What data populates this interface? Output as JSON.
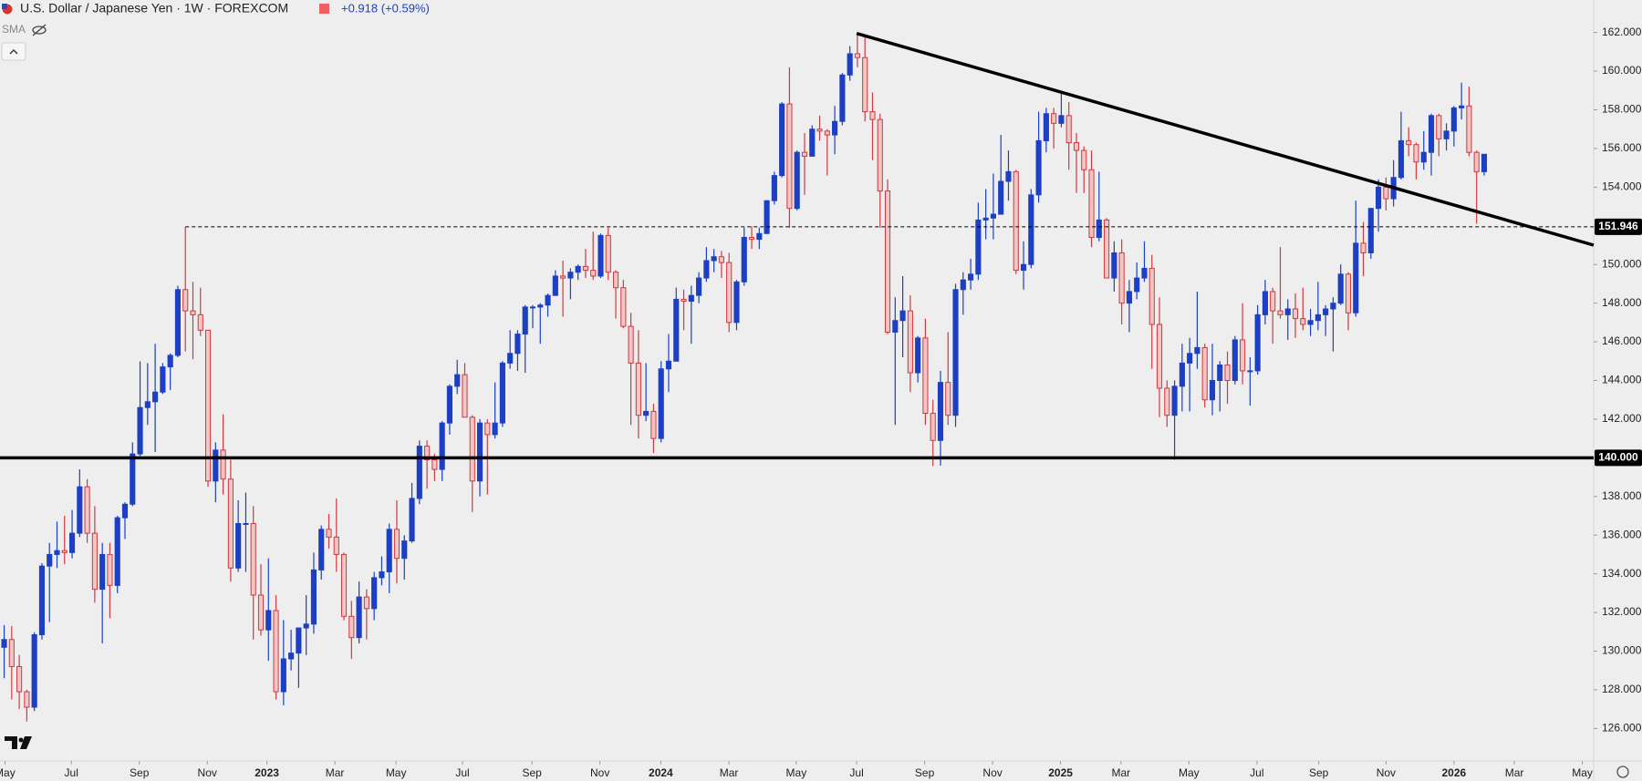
{
  "chart_data": {
    "type": "candlestick",
    "title": "U.S. Dollar / Japanese Yen · 1W · FOREXCOM",
    "change": "+0.918 (+0.59%)",
    "indicator": "SMA",
    "up_color": "#1c3fc4",
    "down_color": "#d0393f",
    "down_fill": "#f3c6c6",
    "xlim": [
      -0.55,
      210.5
    ],
    "ylim": [
      124.32,
      163.68
    ],
    "xticks": [
      {
        "value": 0.1,
        "label": "May"
      },
      {
        "value": 8.9,
        "label": "Jul"
      },
      {
        "value": 17.9,
        "label": "Sep"
      },
      {
        "value": 26.9,
        "label": "Nov"
      },
      {
        "value": 34.8,
        "label": "2023"
      },
      {
        "value": 43.8,
        "label": "Mar"
      },
      {
        "value": 51.9,
        "label": "May"
      },
      {
        "value": 60.7,
        "label": "Jul"
      },
      {
        "value": 69.9,
        "label": "Sep"
      },
      {
        "value": 78.9,
        "label": "Nov"
      },
      {
        "value": 86.96,
        "label": "2024"
      },
      {
        "value": 95.98,
        "label": "Mar"
      },
      {
        "value": 104.9,
        "label": "May"
      },
      {
        "value": 112.9,
        "label": "Jul"
      },
      {
        "value": 121.9,
        "label": "Sep"
      },
      {
        "value": 130.9,
        "label": "Nov"
      },
      {
        "value": 139.9,
        "label": "2025"
      },
      {
        "value": 147.9,
        "label": "Mar"
      },
      {
        "value": 156.9,
        "label": "May"
      },
      {
        "value": 165.9,
        "label": "Jul"
      },
      {
        "value": 174.1,
        "label": "Sep"
      },
      {
        "value": 183,
        "label": "Nov"
      },
      {
        "value": 192,
        "label": "2026"
      },
      {
        "value": 200,
        "label": "Mar"
      },
      {
        "value": 209,
        "label": "May"
      }
    ],
    "yticks": [
      {
        "value": 126,
        "label": "126.000"
      },
      {
        "value": 128,
        "label": "128.000"
      },
      {
        "value": 130,
        "label": "130.000"
      },
      {
        "value": 132,
        "label": "132.000"
      },
      {
        "value": 134,
        "label": "134.000"
      },
      {
        "value": 136,
        "label": "136.000"
      },
      {
        "value": 138,
        "label": "138.000"
      },
      {
        "value": 142,
        "label": "142.000"
      },
      {
        "value": 144,
        "label": "144.000"
      },
      {
        "value": 146,
        "label": "146.000"
      },
      {
        "value": 148,
        "label": "148.000"
      },
      {
        "value": 150,
        "label": "150.000"
      },
      {
        "value": 154,
        "label": "154.000"
      },
      {
        "value": 156,
        "label": "156.000"
      },
      {
        "value": 158,
        "label": "158.000"
      },
      {
        "value": 160,
        "label": "160.000"
      },
      {
        "value": 162,
        "label": "162.000"
      }
    ],
    "hlines": [
      {
        "value": 140,
        "label": "140.000",
        "style": "solid"
      },
      {
        "value": 151.946,
        "label": "151.946",
        "style": "dashed",
        "x_start": 24
      }
    ],
    "trendline": {
      "x": [
        112.9,
        210.5
      ],
      "y": [
        161.95,
        151.0
      ]
    },
    "open": [
      130.2,
      130.6,
      129.2,
      127.9,
      127.1,
      130.85,
      134.4,
      135.0,
      135.2,
      135.1,
      136.1,
      138.5,
      136.1,
      133.2,
      135.0,
      133.4,
      136.9,
      137.6,
      140.2,
      142.6,
      142.9,
      143.4,
      144.7,
      145.3,
      148.7,
      147.6,
      147.4,
      146.6,
      138.8,
      140.4,
      138.9,
      134.3,
      136.6,
      136.6,
      132.9,
      131.1,
      132.1,
      127.9,
      129.6,
      129.9,
      131.2,
      131.4,
      134.2,
      136.3,
      135.9,
      135.0,
      131.8,
      130.7,
      132.8,
      132.2,
      133.8,
      134.1,
      136.3,
      134.8,
      135.7,
      137.9,
      140.6,
      139.9,
      139.4,
      141.8,
      143.7,
      144.3,
      142.1,
      138.8,
      141.8,
      141.2,
      141.8,
      144.9,
      145.4,
      146.4,
      147.8,
      147.8,
      147.9,
      148.4,
      149.4,
      149.3,
      149.6,
      149.9,
      149.7,
      149.4,
      151.5,
      149.6,
      148.8,
      146.8,
      144.9,
      142.2,
      142.4,
      141.0,
      144.6,
      145.0,
      148.2,
      148.1,
      148.4,
      149.3,
      150.2,
      150.4,
      150.1,
      147.0,
      149.1,
      151.4,
      151.3,
      151.6,
      153.3,
      154.6,
      158.3,
      152.9,
      155.8,
      155.6,
      157.0,
      156.9,
      156.7,
      157.4,
      159.8,
      160.9,
      160.7,
      157.9,
      157.5,
      153.8,
      146.5,
      147.1,
      147.6,
      144.4,
      146.2,
      142.3,
      140.9,
      143.9,
      142.2,
      148.7,
      149.2,
      149.5,
      152.3,
      152.4,
      152.6,
      154.3,
      154.8,
      149.7,
      150.0,
      153.6,
      156.4,
      157.8,
      157.3,
      157.7,
      156.3,
      155.9,
      154.9,
      151.4,
      152.3,
      149.3,
      150.6,
      148.0,
      148.6,
      149.3,
      149.8,
      146.9,
      143.6,
      142.2,
      143.7,
      144.9,
      145.4,
      145.7,
      143.0,
      144.0,
      144.8,
      144.0,
      146.1,
      144.5,
      144.5,
      147.4,
      148.6,
      147.6,
      147.4,
      147.7,
      147.2,
      146.9,
      147.1,
      147.4,
      147.7,
      148.0,
      149.5,
      147.5,
      151.1,
      150.6,
      152.9,
      154.0,
      153.4,
      154.5,
      156.4,
      156.2,
      155.3,
      155.8,
      157.7,
      156.5,
      156.9,
      158.1,
      158.2,
      155.8,
      154.8
    ],
    "high": [
      131.35,
      131.3,
      129.8,
      128.0,
      130.98,
      134.55,
      135.6,
      136.7,
      137.0,
      137.3,
      139.4,
      138.9,
      137.5,
      135.6,
      135.6,
      137.0,
      137.7,
      140.8,
      144.99,
      144.9,
      145.9,
      144.9,
      145.4,
      148.9,
      151.94,
      149.1,
      148.8,
      146.6,
      140.8,
      142.25,
      139.9,
      137.8,
      138.2,
      137.5,
      134.5,
      134.8,
      132.9,
      131.6,
      131.1,
      131.2,
      132.9,
      135.1,
      136.5,
      137.1,
      137.9,
      135.1,
      132.6,
      133.6,
      133.2,
      134.1,
      134.9,
      136.6,
      137.8,
      136.0,
      138.7,
      140.9,
      140.9,
      140.2,
      141.9,
      143.8,
      145.07,
      144.9,
      142.2,
      142.0,
      142.0,
      143.9,
      145.0,
      146.6,
      146.6,
      147.9,
      147.9,
      148.0,
      148.5,
      149.7,
      150.2,
      149.8,
      150.0,
      150.8,
      151.7,
      151.6,
      151.9,
      149.7,
      149.2,
      147.5,
      146.6,
      144.9,
      142.8,
      145.0,
      146.4,
      148.8,
      148.7,
      148.9,
      149.6,
      150.9,
      150.8,
      150.7,
      150.6,
      149.2,
      151.9,
      151.97,
      151.9,
      153.3,
      154.8,
      158.4,
      160.2,
      155.9,
      156.8,
      157.2,
      157.7,
      157.0,
      158.2,
      159.9,
      161.3,
      161.95,
      161.8,
      158.9,
      157.8,
      154.4,
      148.3,
      149.4,
      148.4,
      146.3,
      147.2,
      143.0,
      144.5,
      146.5,
      149.0,
      149.6,
      150.3,
      153.2,
      153.9,
      154.7,
      156.7,
      155.9,
      154.9,
      151.2,
      153.9,
      157.9,
      158.1,
      158.1,
      158.87,
      158.4,
      156.8,
      156.1,
      155.9,
      154.8,
      152.4,
      151.2,
      151.3,
      149.2,
      150.1,
      151.2,
      150.5,
      148.3,
      144.0,
      144.0,
      145.9,
      146.2,
      148.6,
      145.9,
      145.9,
      145.0,
      145.5,
      146.3,
      148.0,
      145.2,
      147.9,
      149.2,
      148.8,
      150.9,
      148.2,
      148.5,
      148.8,
      147.7,
      149.1,
      147.9,
      148.3,
      150.0,
      149.6,
      153.3,
      152.2,
      152.9,
      154.4,
      154.5,
      155.4,
      157.9,
      157.1,
      156.3,
      156.9,
      157.8,
      157.8,
      157.3,
      158.2,
      159.4,
      159.2,
      155.9,
      155.7
    ],
    "low": [
      128.6,
      127.5,
      127.0,
      126.36,
      126.9,
      130.6,
      131.5,
      134.3,
      134.5,
      134.8,
      135.9,
      135.6,
      132.5,
      130.4,
      131.7,
      133.0,
      135.8,
      137.5,
      140.1,
      141.7,
      140.3,
      143.3,
      143.5,
      145.2,
      145.5,
      145.1,
      146.3,
      138.5,
      137.7,
      138.1,
      133.6,
      134.1,
      134.1,
      130.6,
      130.8,
      129.5,
      127.5,
      127.2,
      129.0,
      128.1,
      129.8,
      130.9,
      133.7,
      135.3,
      134.1,
      131.6,
      129.6,
      130.4,
      130.6,
      131.6,
      133.4,
      133.0,
      133.5,
      133.7,
      135.6,
      137.6,
      138.4,
      138.8,
      138.8,
      141.2,
      143.3,
      142.1,
      137.2,
      138.0,
      138.1,
      141.0,
      141.6,
      144.6,
      144.5,
      144.4,
      146.7,
      145.9,
      147.3,
      148.4,
      147.3,
      148.2,
      149.2,
      149.3,
      149.2,
      149.3,
      149.2,
      147.2,
      146.7,
      141.7,
      141.0,
      141.9,
      140.25,
      140.8,
      143.4,
      145.0,
      146.6,
      145.9,
      148.0,
      149.1,
      149.6,
      149.3,
      146.5,
      146.6,
      148.9,
      150.8,
      150.8,
      151.6,
      153.1,
      154.5,
      151.9,
      152.8,
      153.6,
      155.6,
      156.4,
      154.6,
      155.7,
      157.2,
      159.5,
      160.2,
      157.4,
      155.4,
      151.9,
      146.4,
      141.7,
      145.2,
      143.4,
      143.9,
      141.7,
      139.58,
      139.6,
      141.7,
      141.6,
      147.4,
      148.7,
      149.2,
      151.3,
      151.3,
      152.6,
      153.3,
      149.5,
      148.7,
      149.8,
      153.2,
      155.8,
      156.0,
      157.1,
      154.9,
      153.7,
      153.7,
      150.9,
      151.2,
      149.3,
      148.6,
      146.9,
      146.5,
      148.2,
      149.1,
      144.6,
      142.1,
      141.6,
      139.9,
      142.4,
      142.4,
      144.6,
      142.6,
      142.2,
      142.4,
      142.8,
      143.8,
      143.8,
      142.7,
      144.3,
      146.9,
      145.9,
      147.2,
      146.1,
      146.2,
      146.6,
      146.3,
      146.6,
      146.3,
      145.5,
      147.9,
      146.6,
      147.3,
      149.4,
      150.3,
      151.7,
      152.8,
      153.0,
      154.4,
      155.6,
      154.4,
      154.9,
      154.6,
      155.6,
      155.9,
      156.1,
      157.5,
      155.6,
      152.1,
      154.6
    ],
    "close": [
      130.6,
      129.2,
      127.9,
      127.1,
      130.85,
      134.4,
      135.0,
      135.2,
      135.1,
      136.1,
      138.5,
      136.1,
      133.2,
      135.0,
      133.4,
      136.9,
      137.6,
      140.2,
      142.6,
      142.9,
      143.4,
      144.7,
      145.3,
      148.7,
      147.6,
      147.4,
      146.6,
      138.8,
      140.4,
      138.9,
      134.3,
      136.6,
      136.6,
      132.9,
      131.1,
      132.1,
      127.9,
      129.6,
      129.9,
      131.2,
      131.4,
      134.2,
      136.3,
      135.9,
      135.0,
      131.8,
      130.7,
      132.8,
      132.2,
      133.8,
      134.1,
      136.3,
      134.8,
      135.7,
      137.9,
      140.6,
      139.9,
      139.4,
      141.8,
      143.7,
      144.3,
      142.1,
      138.8,
      141.8,
      141.2,
      141.8,
      144.9,
      145.4,
      146.4,
      147.8,
      147.8,
      147.9,
      148.4,
      149.4,
      149.3,
      149.6,
      149.9,
      149.7,
      149.4,
      151.5,
      149.6,
      148.8,
      146.8,
      144.9,
      142.2,
      142.4,
      141.0,
      144.6,
      145.0,
      148.2,
      148.1,
      148.4,
      149.3,
      150.2,
      150.4,
      150.1,
      147.0,
      149.1,
      151.4,
      151.3,
      151.6,
      153.3,
      154.6,
      158.3,
      152.9,
      155.8,
      155.6,
      157.0,
      156.9,
      156.7,
      157.4,
      159.8,
      160.9,
      160.7,
      157.9,
      157.5,
      153.8,
      146.5,
      147.1,
      147.6,
      144.4,
      146.2,
      142.3,
      140.9,
      143.9,
      142.2,
      148.7,
      149.2,
      149.5,
      152.3,
      152.4,
      152.6,
      154.3,
      154.8,
      149.7,
      150.0,
      153.6,
      156.4,
      157.8,
      157.3,
      157.7,
      156.3,
      155.9,
      154.9,
      151.4,
      152.3,
      149.3,
      150.6,
      148.0,
      148.6,
      149.3,
      149.8,
      146.9,
      143.6,
      142.2,
      143.7,
      144.9,
      145.4,
      145.7,
      143.0,
      144.0,
      144.8,
      144.0,
      146.1,
      144.5,
      144.5,
      147.4,
      148.6,
      147.6,
      147.4,
      147.7,
      147.2,
      146.9,
      147.1,
      147.4,
      147.7,
      148.0,
      149.5,
      147.5,
      151.1,
      150.6,
      152.9,
      154.0,
      153.4,
      154.5,
      156.4,
      156.2,
      155.3,
      155.8,
      157.7,
      156.5,
      156.9,
      158.1,
      158.2,
      155.8,
      154.8,
      155.7
    ]
  }
}
